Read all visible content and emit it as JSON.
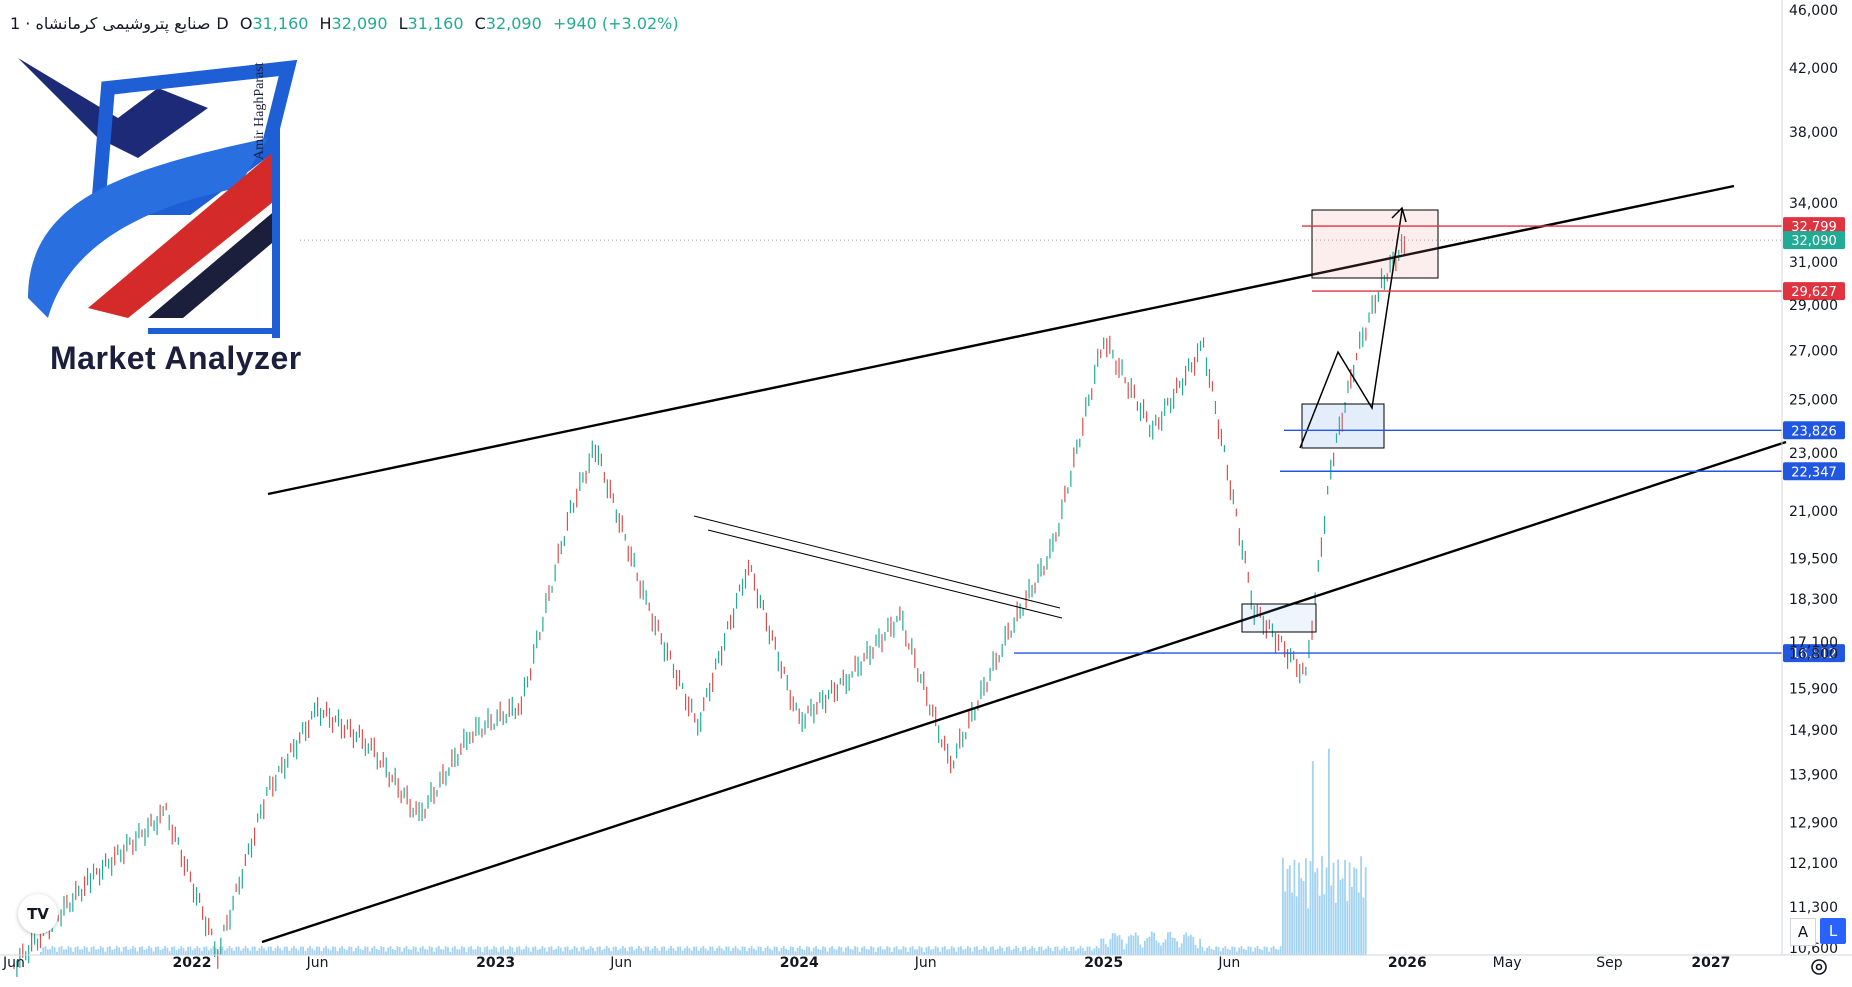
{
  "header": {
    "symbol": "صنایع پتروشیمی کرمانشاه",
    "interval": "· 1D",
    "o_label": "O",
    "o_value": "31,160",
    "h_label": "H",
    "h_value": "32,090",
    "l_label": "L",
    "l_value": "31,160",
    "c_label": "C",
    "c_value": "32,090",
    "change": "+940 (+3.02%)"
  },
  "logo": {
    "title": "Market Analyzer",
    "signature": "Amir HaghParast"
  },
  "tv_logo": "TV",
  "buttons": {
    "auto": "A",
    "log": "L"
  },
  "colors": {
    "up": "#22ab94",
    "down": "#e04f4f",
    "resistance": "#e03340",
    "support": "#2157e0",
    "current": "#22ab94",
    "volume": "#5aaee8"
  },
  "chart_data": {
    "type": "line",
    "ylim": [
      10000,
      46000
    ],
    "log_scale": true,
    "y_ticks": [
      "10,600",
      "11,300",
      "12,100",
      "12,900",
      "13,900",
      "14,900",
      "15,900",
      "16,800",
      "17,100",
      "18,300",
      "19,500",
      "21,000",
      "23,000",
      "25,000",
      "27,000",
      "29,000",
      "31,000",
      "34,000",
      "38,000",
      "42,000",
      "46,000"
    ],
    "x_ticks": [
      "Jun",
      "2022",
      "Jun",
      "2023",
      "Jun",
      "2024",
      "Jun",
      "2025",
      "Jun",
      "2026",
      "May",
      "Sep",
      "2027"
    ],
    "price_labels": [
      {
        "value": 32799,
        "text": "32,799",
        "color": "#e03340"
      },
      {
        "value": 32090,
        "text": "32,090",
        "color": "#22ab94"
      },
      {
        "value": 29627,
        "text": "29,627",
        "color": "#e03340"
      },
      {
        "value": 23826,
        "text": "23,826",
        "color": "#2157e0"
      },
      {
        "value": 22347,
        "text": "22,347",
        "color": "#2157e0"
      },
      {
        "value": 16812,
        "text": "16,812",
        "color": "#2157e0"
      }
    ],
    "series": [
      {
        "x": [
          "2021-06",
          "2021-09",
          "2021-12",
          "2022-02",
          "2022-04",
          "2022-06",
          "2022-08",
          "2022-10",
          "2022-12",
          "2023-02",
          "2023-04",
          "2023-05",
          "2023-07",
          "2023-09",
          "2023-11",
          "2024-01",
          "2024-03",
          "2024-05",
          "2024-07",
          "2024-09",
          "2024-11",
          "2025-01",
          "2025-03",
          "2025-05",
          "2025-07",
          "2025-09",
          "2025-10",
          "2025-11",
          "2025-12",
          "2026-01"
        ],
        "values": [
          10300,
          11800,
          13100,
          10500,
          13500,
          15400,
          14600,
          13000,
          14800,
          15500,
          21000,
          23200,
          18200,
          15000,
          19300,
          15100,
          16200,
          17800,
          14100,
          17000,
          19800,
          27500,
          23800,
          27200,
          18000,
          16200,
          22500,
          26800,
          30000,
          32090
        ]
      }
    ]
  }
}
